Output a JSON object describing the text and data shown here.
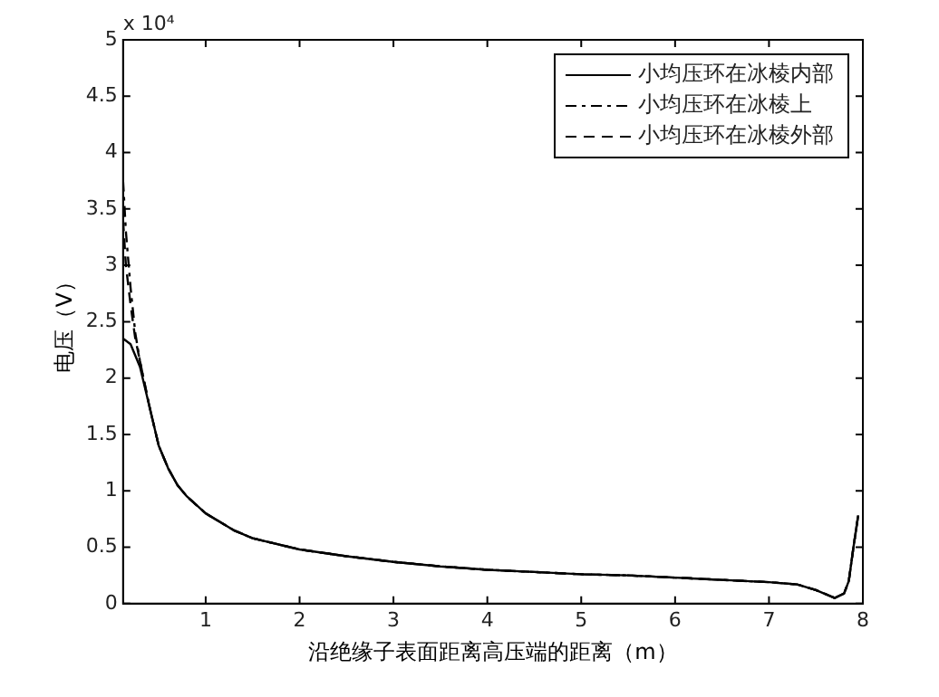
{
  "chart_data": {
    "type": "line",
    "xlabel": "沿绝缘子表面距离高压端的距离（m）",
    "ylabel": "电压（V）",
    "annotations": [
      "x 10⁴"
    ],
    "xlim": [
      0.12,
      8
    ],
    "xticks": [
      1,
      2,
      3,
      4,
      5,
      6,
      7,
      8
    ],
    "ylim": [
      0,
      5
    ],
    "yticks": [
      0,
      0.5,
      1,
      1.5,
      2,
      2.5,
      3,
      3.5,
      4,
      4.5,
      5
    ],
    "grid": false,
    "legend": "top right",
    "marker": "none",
    "series": [
      {
        "name": "小均压环在冰棱内部",
        "color": "#000000",
        "line_style": "solid",
        "x": [
          0.12,
          0.2,
          0.3,
          0.4,
          0.5,
          0.6,
          0.7,
          0.8,
          1,
          1.3,
          1.5,
          2,
          2.5,
          3,
          3.5,
          4,
          4.5,
          5,
          5.5,
          6,
          6.5,
          7,
          7.3,
          7.5,
          7.7,
          7.8,
          7.85,
          7.9,
          7.95
        ],
        "values": [
          2.35,
          2.3,
          2.1,
          1.75,
          1.4,
          1.2,
          1.05,
          0.95,
          0.8,
          0.65,
          0.58,
          0.48,
          0.42,
          0.37,
          0.33,
          0.3,
          0.28,
          0.26,
          0.25,
          0.23,
          0.21,
          0.19,
          0.17,
          0.12,
          0.05,
          0.09,
          0.2,
          0.5,
          0.78
        ]
      },
      {
        "name": "小均压环在冰棱上",
        "color": "#000000",
        "line_style": "dashdot",
        "x": [
          0.12,
          0.15,
          0.2,
          0.25,
          0.3,
          0.4,
          0.5,
          0.6,
          0.7,
          0.8,
          1,
          1.3,
          1.5,
          2,
          2.5,
          3,
          3.5,
          4,
          4.5,
          5,
          5.5,
          6,
          6.5,
          7,
          7.3,
          7.5,
          7.7,
          7.8,
          7.85,
          7.9,
          7.95
        ],
        "values": [
          3.75,
          3.3,
          2.8,
          2.4,
          2.15,
          1.75,
          1.4,
          1.2,
          1.05,
          0.95,
          0.8,
          0.65,
          0.58,
          0.48,
          0.42,
          0.37,
          0.33,
          0.3,
          0.28,
          0.26,
          0.25,
          0.23,
          0.21,
          0.19,
          0.17,
          0.12,
          0.05,
          0.09,
          0.2,
          0.5,
          0.78
        ]
      },
      {
        "name": "小均压环在冰棱外部",
        "color": "#000000",
        "line_style": "dashed",
        "x": [
          0.12,
          0.15,
          0.2,
          0.25,
          0.3,
          0.4,
          0.5,
          0.6,
          0.7,
          0.8,
          1,
          1.3,
          1.5,
          2,
          2.5,
          3,
          3.5,
          4,
          4.5,
          5,
          5.5,
          6,
          6.5,
          7,
          7.3,
          7.5,
          7.7,
          7.8,
          7.85,
          7.9,
          7.95
        ],
        "values": [
          3.4,
          3.0,
          2.65,
          2.35,
          2.15,
          1.75,
          1.4,
          1.2,
          1.05,
          0.95,
          0.8,
          0.65,
          0.58,
          0.48,
          0.42,
          0.37,
          0.33,
          0.3,
          0.28,
          0.26,
          0.25,
          0.23,
          0.21,
          0.19,
          0.17,
          0.12,
          0.05,
          0.09,
          0.2,
          0.5,
          0.78
        ]
      }
    ]
  }
}
